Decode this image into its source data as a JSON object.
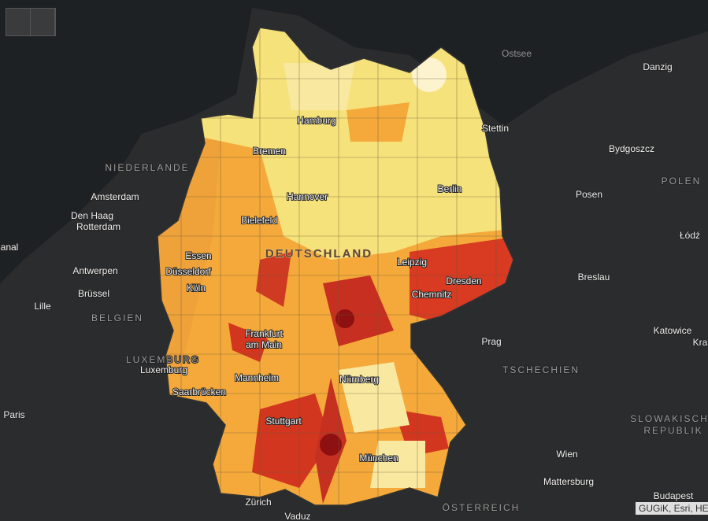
{
  "map": {
    "labels": [
      "Ostsee",
      "Danzig",
      "Stettin",
      "Bydgoszcz",
      "POLEN",
      "Posen",
      "Łódź",
      "Breslau",
      "Katowice",
      "Kra",
      "Prag",
      "TSCHECHIEN",
      "SLOWAKISCHE",
      "REPUBLIK",
      "Wien",
      "Mattersburg",
      "Budapest",
      "ÖSTERREICH",
      "Zürich",
      "Vaduz",
      "Paris",
      "Lille",
      "BELGIEN",
      "Brüssel",
      "Antwerpen",
      "Amsterdam",
      "Den Haag",
      "Rotterdam",
      "NIEDERLANDE",
      "anal",
      "LUXEMBURG",
      "Luxemburg",
      "Saarbrücken",
      "Hamburg",
      "Bremen",
      "Hannover",
      "Berlin",
      "Bielefeld",
      "DEUTSCHLAND",
      "Essen",
      "Düsseldorf",
      "Köln",
      "Leipzig",
      "Dresden",
      "Chemnitz",
      "Frankfurt",
      "am Main",
      "Mannheim",
      "Nürnberg",
      "Stuttgart",
      "München"
    ]
  },
  "attribution": "GUGiK, Esri, HERE"
}
